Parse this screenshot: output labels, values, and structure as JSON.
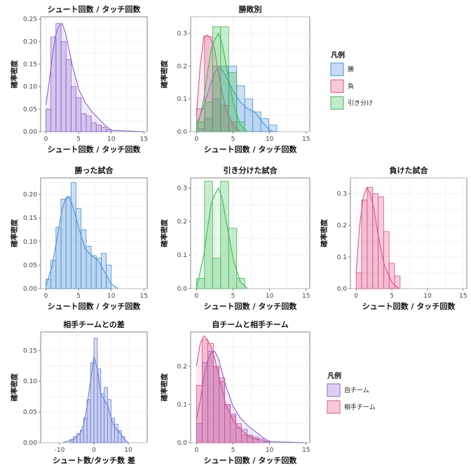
{
  "colors": {
    "win": "#4a90d9",
    "lose": "#e0508a",
    "draw": "#3cba54",
    "shot": "#8a63d2",
    "diff": "#6a7fd6",
    "own": "#8a63d2",
    "opp": "#e0508a"
  },
  "legend_top": {
    "title": "凡例",
    "items": [
      "勝",
      "負",
      "引き分け"
    ]
  },
  "legend_bottom": {
    "title": "凡例",
    "items": [
      "自チーム",
      "相手チーム"
    ]
  },
  "chart_data": [
    {
      "id": "p1",
      "type": "bar",
      "title": "シュート回数 / タッチ回数",
      "xlabel": "シュート回数 / タッチ回数",
      "ylabel": "確率密度",
      "xlim": [
        -0.8,
        15.5
      ],
      "ylim": [
        0,
        0.255
      ],
      "xticks": [
        0,
        5,
        10,
        15
      ],
      "yticks": [
        0,
        0.05,
        0.1,
        0.15,
        0.2,
        0.25
      ],
      "ytick_labels": [
        "0.00",
        "0.05",
        "0.10",
        "0.15",
        "0.20",
        "0.25"
      ],
      "bin_width": 0.77,
      "series": [
        {
          "key": "shot",
          "hist": [
            0.05,
            0.21,
            0.24,
            0.2,
            0.16,
            0.1,
            0.075,
            0.04,
            0.035,
            0.02,
            0.015,
            0.01,
            0.005
          ],
          "density_x": [
            0,
            0.5,
            1,
            1.5,
            2,
            2.5,
            3,
            3.5,
            4,
            5,
            6,
            7,
            8,
            9,
            10,
            15
          ],
          "density_y": [
            0.06,
            0.11,
            0.17,
            0.215,
            0.235,
            0.24,
            0.22,
            0.185,
            0.15,
            0.095,
            0.065,
            0.045,
            0.03,
            0.015,
            0.003,
            0
          ]
        }
      ]
    },
    {
      "id": "p2",
      "type": "bar",
      "title": "勝敗別",
      "xlabel": "シュート回数 / タッチ回数",
      "ylabel": "確率密度",
      "xlim": [
        -0.8,
        15.5
      ],
      "ylim": [
        0,
        0.35
      ],
      "xticks": [
        0,
        5,
        10,
        15
      ],
      "yticks": [
        0,
        0.1,
        0.2,
        0.3
      ],
      "ytick_labels": [
        "0.0",
        "0.1",
        "0.2",
        "0.3"
      ],
      "bin_width": 1.1,
      "series": [
        {
          "key": "win",
          "hist": [
            0.01,
            0.04,
            0.1,
            0.2,
            0.2,
            0.14,
            0.1,
            0.06,
            0.04,
            0.02
          ],
          "density_x": [
            0,
            1,
            2,
            2.5,
            3,
            3.5,
            4,
            5,
            6,
            7,
            8,
            9,
            10,
            10.5
          ],
          "density_y": [
            0.02,
            0.08,
            0.15,
            0.18,
            0.195,
            0.19,
            0.17,
            0.125,
            0.09,
            0.07,
            0.06,
            0.03,
            0.005,
            0
          ]
        },
        {
          "key": "lose",
          "hist": [
            0.07,
            0.29,
            0.2,
            0.08,
            0.03
          ],
          "density_x": [
            0,
            0.5,
            1,
            1.5,
            2,
            2.5,
            3,
            3.5,
            4,
            5,
            6
          ],
          "density_y": [
            0.05,
            0.2,
            0.29,
            0.295,
            0.28,
            0.25,
            0.18,
            0.12,
            0.07,
            0.02,
            0
          ]
        },
        {
          "key": "draw",
          "hist": [
            0.03,
            0.09,
            0.32,
            0.32,
            0.18,
            0.03
          ],
          "density_x": [
            0,
            1,
            1.5,
            2,
            2.5,
            3,
            3.5,
            4,
            4.5,
            5,
            6,
            7
          ],
          "density_y": [
            0,
            0.1,
            0.18,
            0.25,
            0.28,
            0.3,
            0.27,
            0.21,
            0.15,
            0.09,
            0.02,
            0
          ]
        }
      ]
    },
    {
      "id": "p3",
      "type": "bar",
      "title": "勝った試合",
      "xlabel": "シュート回数 / タッチ回数",
      "ylabel": "確率密度",
      "xlim": [
        -0.8,
        15.5
      ],
      "ylim": [
        0,
        0.235
      ],
      "xticks": [
        0,
        5,
        10,
        15
      ],
      "yticks": [
        0,
        0.05,
        0.1,
        0.15,
        0.2
      ],
      "ytick_labels": [
        "0.00",
        "0.05",
        "0.10",
        "0.15",
        "0.20"
      ],
      "bin_width": 0.77,
      "series": [
        {
          "key": "win",
          "hist": [
            0.02,
            0.06,
            0.13,
            0.19,
            0.195,
            0.225,
            0.17,
            0.125,
            0.09,
            0.07,
            0.065,
            0.075,
            0.05
          ],
          "density_x": [
            0,
            1,
            2,
            2.5,
            3,
            3.5,
            4,
            5,
            6,
            7,
            8,
            9,
            10,
            11
          ],
          "density_y": [
            0.005,
            0.05,
            0.13,
            0.17,
            0.19,
            0.195,
            0.18,
            0.13,
            0.085,
            0.07,
            0.06,
            0.035,
            0.01,
            0
          ]
        }
      ]
    },
    {
      "id": "p4",
      "type": "bar",
      "title": "引き分けた試合",
      "xlabel": "シュート回数 / タッチ回数",
      "ylabel": "確率密度",
      "xlim": [
        -0.8,
        15.5
      ],
      "ylim": [
        0,
        0.33
      ],
      "xticks": [
        0,
        5,
        10,
        15
      ],
      "yticks": [
        0,
        0.1,
        0.2,
        0.3
      ],
      "ytick_labels": [
        "0.0",
        "0.1",
        "0.2",
        "0.3"
      ],
      "bin_width": 1.1,
      "series": [
        {
          "key": "draw",
          "hist": [
            0.03,
            0.32,
            0.09,
            0.32,
            0.18,
            0.03
          ],
          "density_x": [
            0,
            1,
            1.5,
            2,
            2.5,
            3,
            3.5,
            4,
            4.5,
            5,
            6,
            7
          ],
          "density_y": [
            0.0,
            0.1,
            0.18,
            0.25,
            0.28,
            0.3,
            0.27,
            0.21,
            0.15,
            0.09,
            0.02,
            0
          ]
        }
      ]
    },
    {
      "id": "p5",
      "type": "bar",
      "title": "負けた試合",
      "xlabel": "シュート回数 / タッチ回数",
      "ylabel": "確率密度",
      "xlim": [
        -0.8,
        15.5
      ],
      "ylim": [
        0,
        0.35
      ],
      "xticks": [
        0,
        5,
        10,
        15
      ],
      "yticks": [
        0,
        0.1,
        0.2,
        0.3
      ],
      "ytick_labels": [
        "0.0",
        "0.1",
        "0.2",
        "0.3"
      ],
      "bin_width": 0.77,
      "series": [
        {
          "key": "lose",
          "hist": [
            0.05,
            0.28,
            0.32,
            0.3,
            0.29,
            0.18,
            0.08,
            0.04
          ],
          "density_x": [
            0,
            0.5,
            1,
            1.5,
            2,
            2.5,
            3,
            3.5,
            4,
            5,
            6
          ],
          "density_y": [
            0.05,
            0.2,
            0.29,
            0.32,
            0.3,
            0.25,
            0.18,
            0.12,
            0.07,
            0.02,
            0
          ]
        }
      ]
    },
    {
      "id": "p6",
      "type": "bar",
      "title": "相手チームとの差",
      "xlabel": "シュート数/タッチ数 差",
      "ylabel": "確率密度",
      "xlim": [
        -15.5,
        15.5
      ],
      "ylim": [
        0,
        0.18
      ],
      "xticks": [
        -10,
        0,
        10
      ],
      "yticks": [
        0,
        0.05,
        0.1,
        0.15
      ],
      "ytick_labels": [
        "0.00",
        "0.05",
        "0.10",
        "0.15"
      ],
      "bin_width": 1.0,
      "series": [
        {
          "key": "diff",
          "hist_start": -7,
          "hist": [
            0.005,
            0.01,
            0.015,
            0.02,
            0.04,
            0.07,
            0.13,
            0.17,
            0.12,
            0.08,
            0.09,
            0.07,
            0.04,
            0.03,
            0.02,
            0.01
          ],
          "density_x": [
            -9,
            -6,
            -4,
            -3,
            -2,
            -1,
            0,
            1,
            2,
            3,
            4,
            5,
            6,
            7,
            9,
            10
          ],
          "density_y": [
            0,
            0.005,
            0.015,
            0.03,
            0.06,
            0.1,
            0.14,
            0.12,
            0.08,
            0.07,
            0.06,
            0.04,
            0.025,
            0.02,
            0.005,
            0
          ]
        }
      ]
    },
    {
      "id": "p7",
      "type": "bar",
      "title": "自チームと相手チーム",
      "xlabel": "シュート回数 / タッチ回数",
      "ylabel": "確率密度",
      "xlim": [
        -0.8,
        15.5
      ],
      "ylim": [
        0,
        0.29
      ],
      "xticks": [
        0,
        5,
        10,
        15
      ],
      "yticks": [
        0,
        0.1,
        0.2
      ],
      "ytick_labels": [
        "0.0",
        "0.1",
        "0.2"
      ],
      "bin_width": 0.77,
      "series": [
        {
          "key": "own",
          "hist": [
            0.05,
            0.21,
            0.24,
            0.2,
            0.16,
            0.1,
            0.075,
            0.04,
            0.035,
            0.02,
            0.015,
            0.01,
            0.005
          ],
          "density_x": [
            0,
            0.5,
            1,
            1.5,
            2,
            2.5,
            3,
            3.5,
            4,
            5,
            6,
            7,
            8,
            9,
            10,
            15
          ],
          "density_y": [
            0.06,
            0.11,
            0.17,
            0.215,
            0.235,
            0.24,
            0.22,
            0.185,
            0.15,
            0.095,
            0.065,
            0.045,
            0.03,
            0.015,
            0.003,
            0
          ]
        },
        {
          "key": "opp",
          "hist": [
            0.15,
            0.27,
            0.26,
            0.2,
            0.17,
            0.1,
            0.07,
            0.05,
            0.02,
            0.015,
            0.01
          ],
          "density_x": [
            0,
            0.5,
            1,
            1.5,
            2,
            2.5,
            3,
            3.5,
            4,
            5,
            6,
            7,
            8,
            10
          ],
          "density_y": [
            0.2,
            0.26,
            0.28,
            0.27,
            0.25,
            0.22,
            0.18,
            0.14,
            0.1,
            0.06,
            0.035,
            0.02,
            0.01,
            0
          ]
        }
      ]
    }
  ]
}
